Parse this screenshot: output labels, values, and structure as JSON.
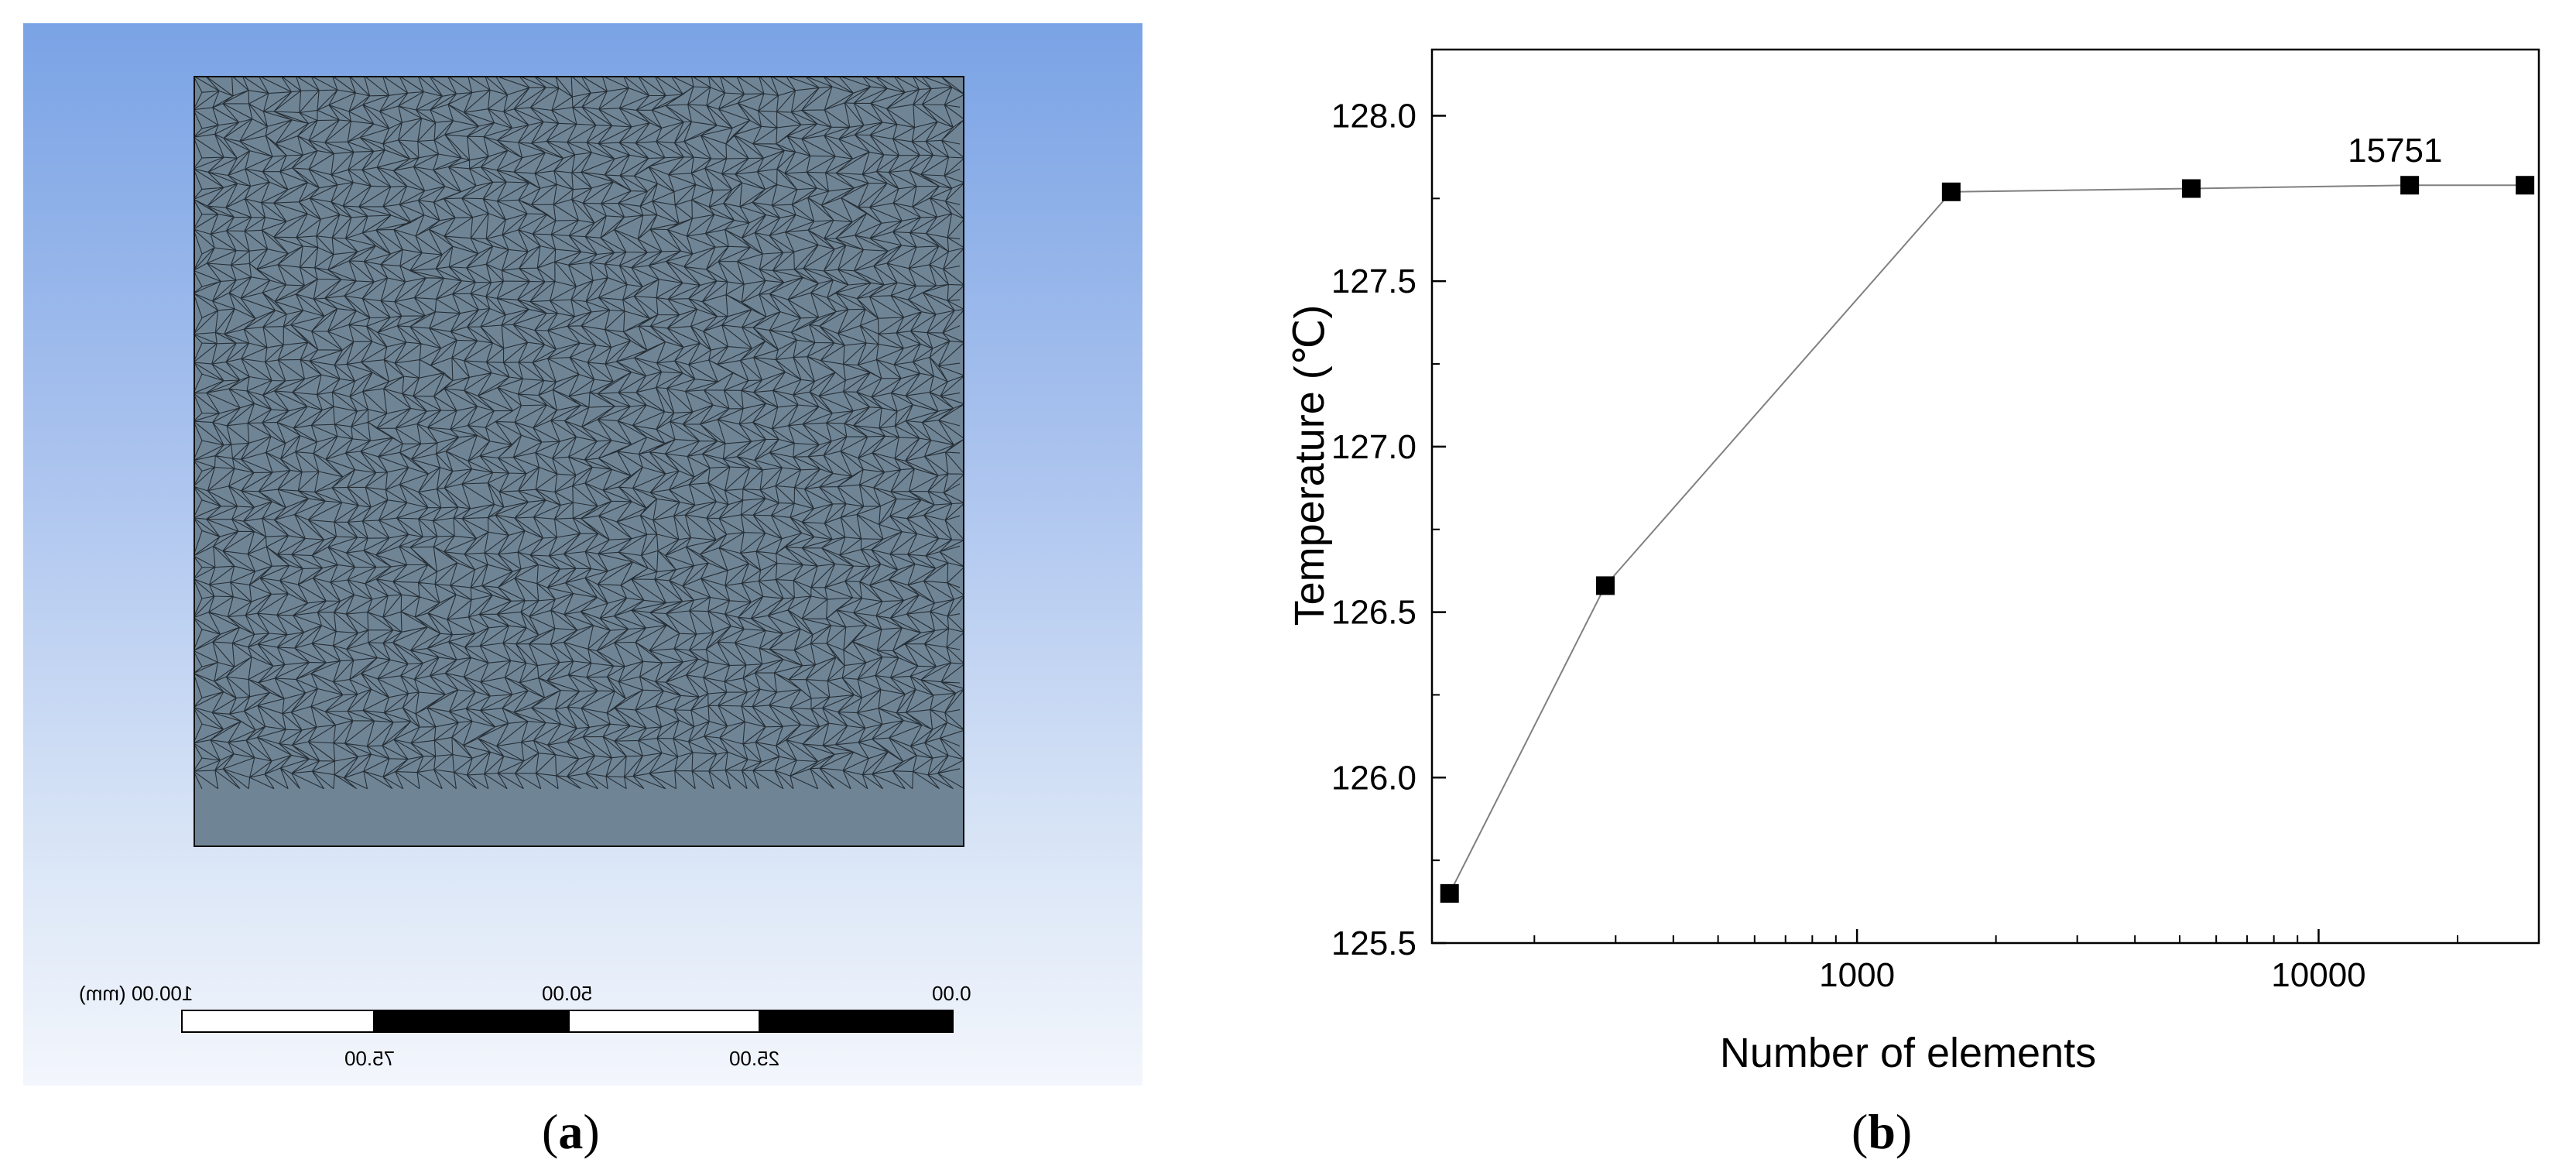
{
  "panel_a": {
    "caption_letter": "a",
    "mesh_color": "#6f8596",
    "mesh_line_color": "#1a1f24",
    "scale_bar": {
      "top_labels": [
        "0.00",
        "50.00",
        "100.00 (mm)"
      ],
      "bottom_labels": [
        "25.00",
        "75.00"
      ]
    }
  },
  "panel_b": {
    "caption_letter": "b"
  },
  "chart_data": {
    "type": "line",
    "title": "",
    "xlabel": "Number of elements",
    "ylabel": "Temperature (℃)",
    "x_scale": "log",
    "xlim": [
      120,
      30000
    ],
    "ylim": [
      125.5,
      128.2
    ],
    "x_ticks": [
      1000,
      10000
    ],
    "x_tick_labels": [
      "1000",
      "10000"
    ],
    "y_ticks": [
      125.5,
      126.0,
      126.5,
      127.0,
      127.5,
      128.0
    ],
    "y_tick_labels": [
      "125.5",
      "126.0",
      "126.5",
      "127.0",
      "127.5",
      "128.0"
    ],
    "grid": false,
    "legend": "none",
    "marker": "square",
    "line_color": "#808080",
    "marker_color": "#000000",
    "series": [
      {
        "x": [
          131,
          285,
          1600,
          5300,
          15751,
          28000
        ],
        "y": [
          125.65,
          126.58,
          127.77,
          127.78,
          127.79,
          127.79
        ]
      }
    ],
    "annotations": [
      {
        "text": "15751",
        "x": 15751,
        "y": 127.79
      }
    ]
  }
}
